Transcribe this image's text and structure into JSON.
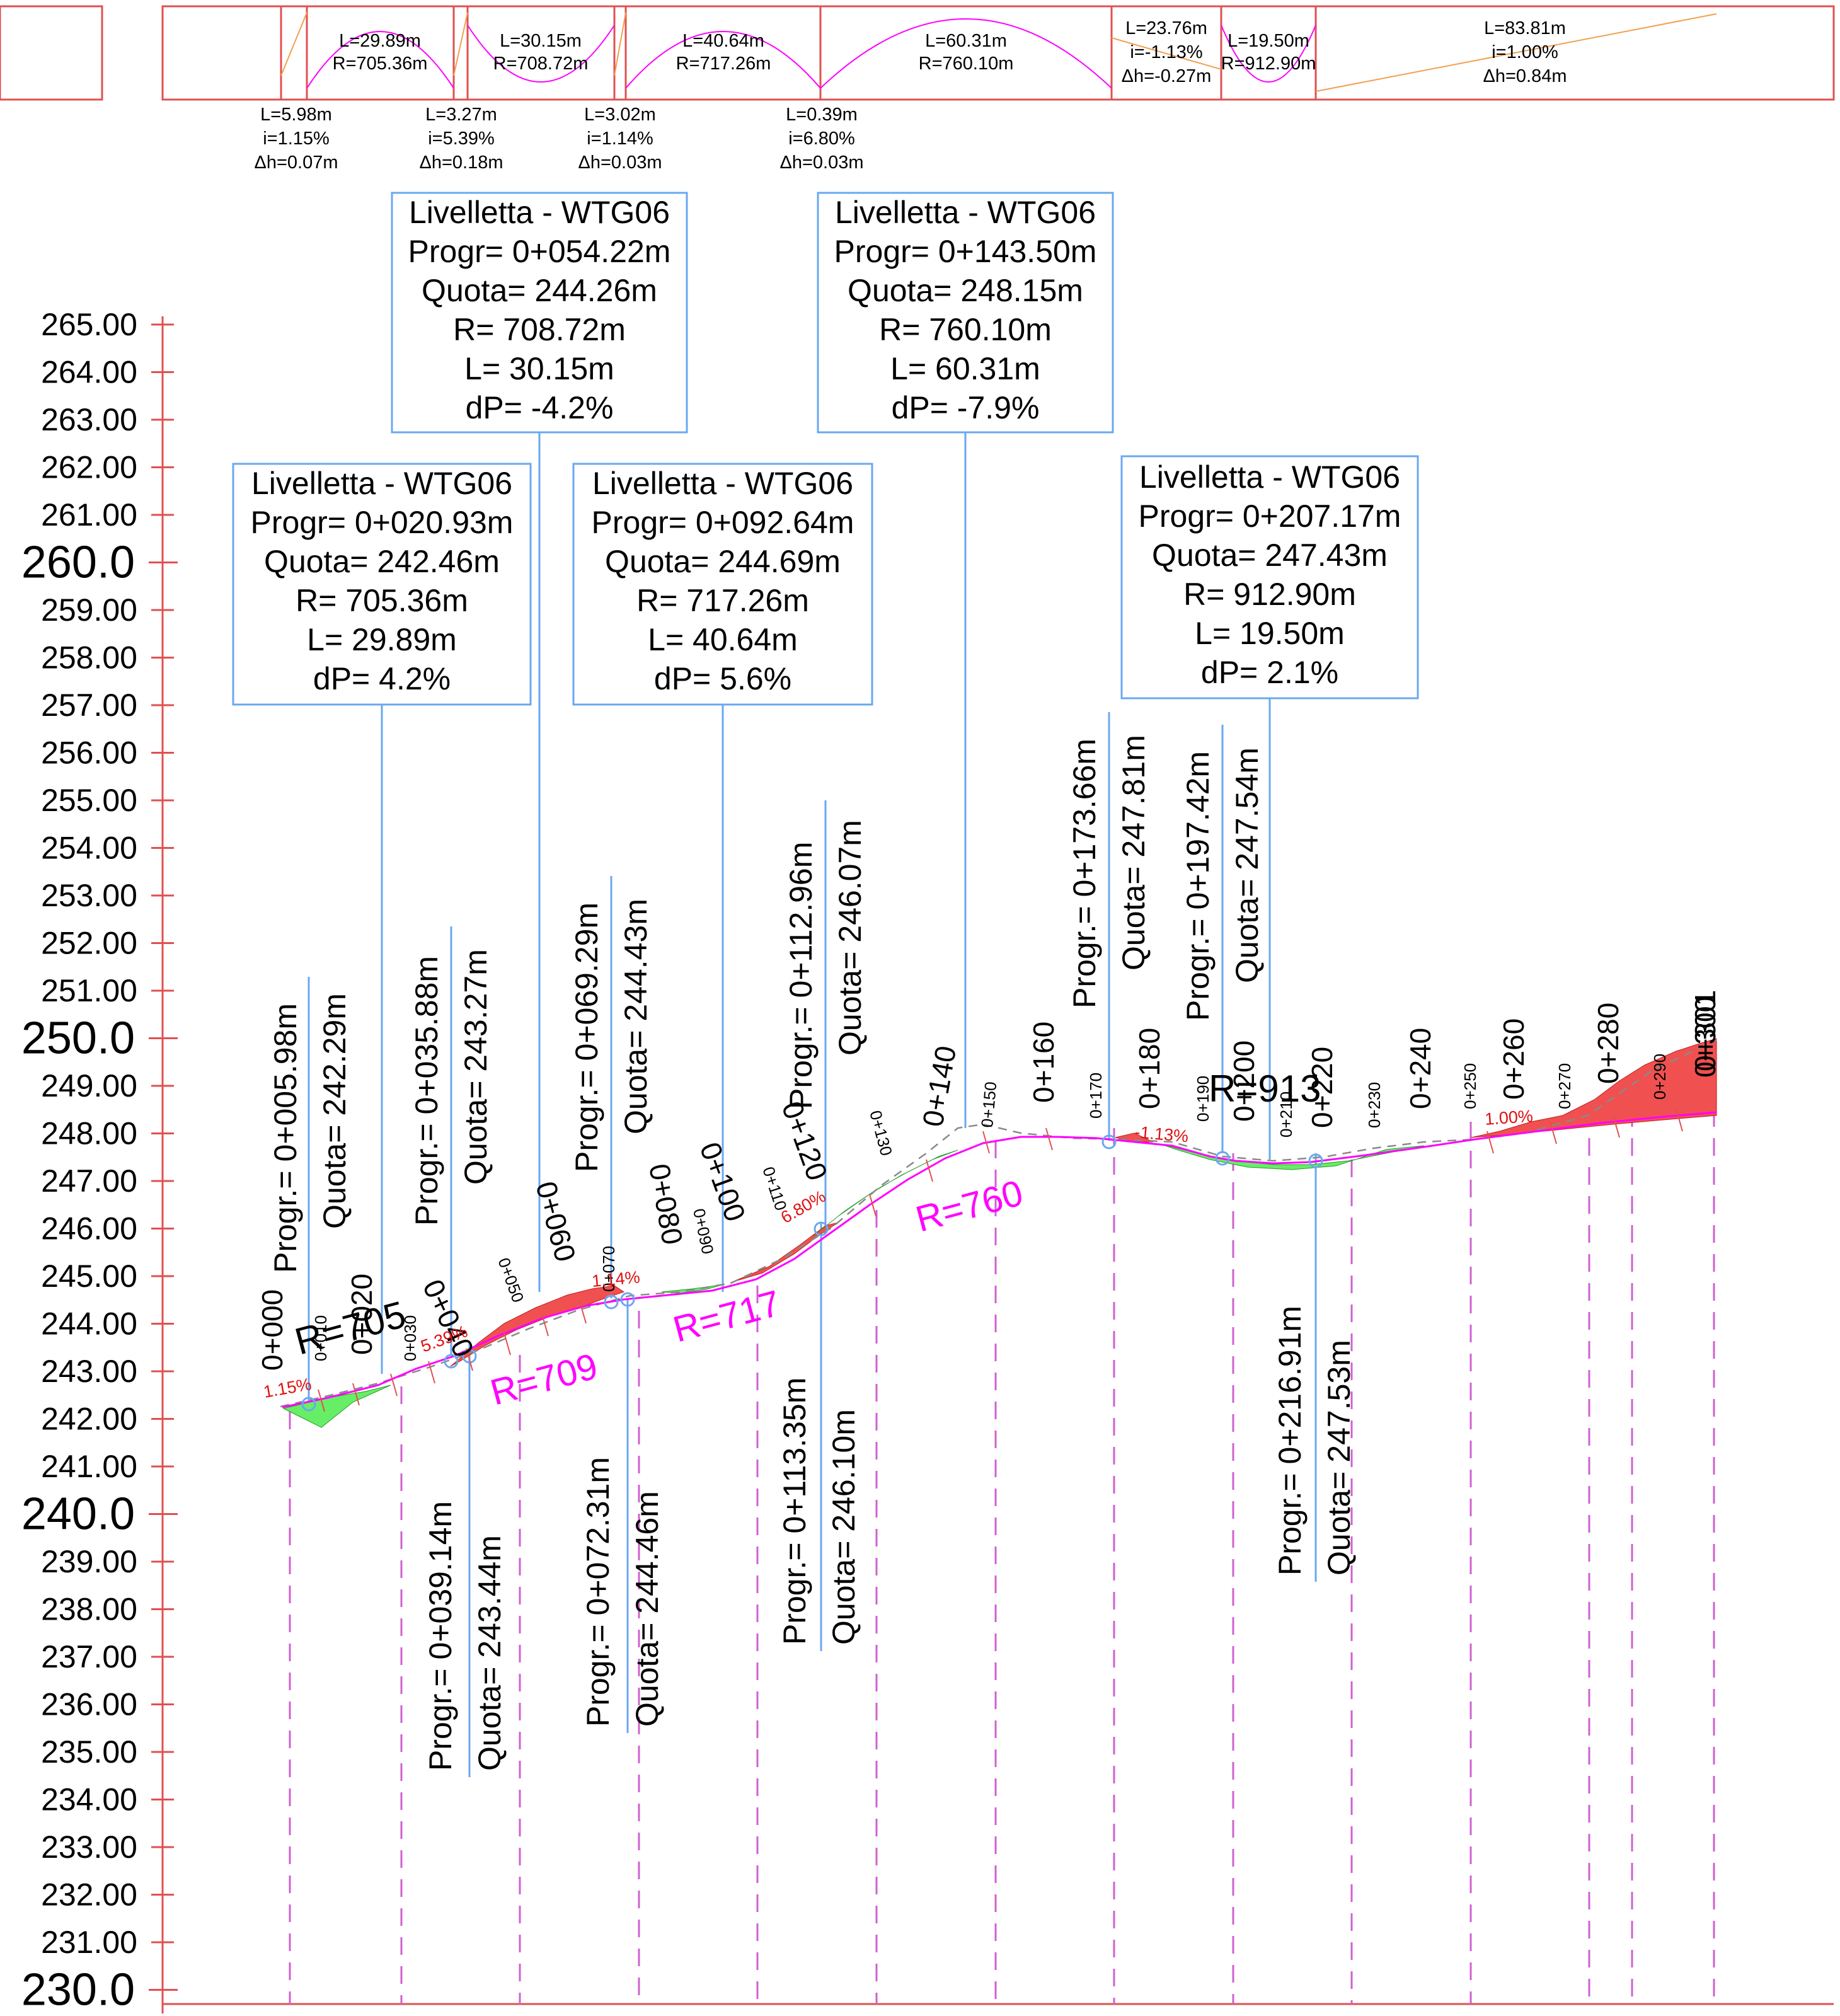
{
  "colors": {
    "band_border": "#e05050",
    "axis_red": "#e05050",
    "callout_line": "#6aa8f0",
    "vertical_curve": "#ff00ff",
    "grade_line": "#f0a050",
    "fill_cut": "#f05050",
    "fill_fill": "#66ee66",
    "terrain_dashed": "#8a8a8a",
    "station_dash": "#d060d0"
  },
  "band": {
    "curves": [
      {
        "l": "L=29.89m",
        "r": "R=705.36m"
      },
      {
        "l": "L=30.15m",
        "r": "R=708.72m"
      },
      {
        "l": "L=40.64m",
        "r": "R=717.26m"
      },
      {
        "l": "L=60.31m",
        "r": "R=760.10m"
      },
      {
        "l": "L=19.50m",
        "r": "R=912.90m"
      }
    ],
    "grades_in": [
      {
        "l": "L=23.76m",
        "i": "i=-1.13%",
        "dh": "Δh=-0.27m"
      },
      {
        "l": "L=83.81m",
        "i": "i=1.00%",
        "dh": "Δh=0.84m"
      }
    ],
    "grades_below": [
      {
        "l": "L=5.98m",
        "i": "i=1.15%",
        "dh": "Δh=0.07m"
      },
      {
        "l": "L=3.27m",
        "i": "i=5.39%",
        "dh": "Δh=0.18m"
      },
      {
        "l": "L=3.02m",
        "i": "i=1.14%",
        "dh": "Δh=0.03m"
      },
      {
        "l": "L=0.39m",
        "i": "i=6.80%",
        "dh": "Δh=0.03m"
      }
    ]
  },
  "callouts": [
    {
      "title": "Livelletta - WTG06",
      "progr": "Progr= 0+054.22m",
      "quota": "Quota= 244.26m",
      "r": "R= 708.72m",
      "l": "L= 30.15m",
      "dp": "dP= -4.2%"
    },
    {
      "title": "Livelletta - WTG06",
      "progr": "Progr= 0+143.50m",
      "quota": "Quota= 248.15m",
      "r": "R= 760.10m",
      "l": "L= 60.31m",
      "dp": "dP= -7.9%"
    },
    {
      "title": "Livelletta - WTG06",
      "progr": "Progr= 0+020.93m",
      "quota": "Quota= 242.46m",
      "r": "R= 705.36m",
      "l": "L= 29.89m",
      "dp": "dP= 4.2%"
    },
    {
      "title": "Livelletta - WTG06",
      "progr": "Progr= 0+092.64m",
      "quota": "Quota= 244.69m",
      "r": "R= 717.26m",
      "l": "L= 40.64m",
      "dp": "dP= 5.6%"
    },
    {
      "title": "Livelletta - WTG06",
      "progr": "Progr= 0+207.17m",
      "quota": "Quota= 247.43m",
      "r": "R= 912.90m",
      "l": "L= 19.50m",
      "dp": "dP= 2.1%"
    }
  ],
  "axis_labels": [
    "265.00",
    "264.00",
    "263.00",
    "262.00",
    "261.00",
    "260.0",
    "259.00",
    "258.00",
    "257.00",
    "256.00",
    "255.00",
    "254.00",
    "253.00",
    "252.00",
    "251.00",
    "250.0",
    "249.00",
    "248.00",
    "247.00",
    "246.00",
    "245.00",
    "244.00",
    "243.00",
    "242.00",
    "241.00",
    "240.0",
    "239.00",
    "238.00",
    "237.00",
    "236.00",
    "235.00",
    "234.00",
    "233.00",
    "232.00",
    "231.00",
    "230.0"
  ],
  "vertical_labels_above": [
    {
      "progr": "Progr.= 0+005.98m",
      "quota": "Quota= 242.29m"
    },
    {
      "progr": "Progr.= 0+035.88m",
      "quota": "Quota= 243.27m"
    },
    {
      "progr": "Progr.= 0+069.29m",
      "quota": "Quota= 244.43m"
    },
    {
      "progr": "Progr.= 0+112.96m",
      "quota": "Quota= 246.07m"
    },
    {
      "progr": "Progr.= 0+173.66m",
      "quota": "Quota= 247.81m"
    },
    {
      "progr": "Progr.= 0+197.42m",
      "quota": "Quota= 247.54m"
    }
  ],
  "vertical_labels_below": [
    {
      "progr": "Progr.= 0+039.14m",
      "quota": "Quota= 243.44m"
    },
    {
      "progr": "Progr.= 0+072.31m",
      "quota": "Quota= 244.46m"
    },
    {
      "progr": "Progr.= 0+113.35m",
      "quota": "Quota= 246.10m"
    },
    {
      "progr": "Progr.= 0+216.91m",
      "quota": "Quota= 247.53m"
    }
  ],
  "stations": [
    "0+000",
    "0+010",
    "0+020",
    "0+030",
    "0+040",
    "0+050",
    "0+060",
    "0+070",
    "0+080",
    "0+090",
    "0+100",
    "0+110",
    "0+120",
    "0+130",
    "0+140",
    "0+150",
    "0+160",
    "0+170",
    "0+180",
    "0+190",
    "0+200",
    "0+210",
    "0+220",
    "0+230",
    "0+240",
    "0+250",
    "0+260",
    "0+270",
    "0+280",
    "0+290",
    "0+300",
    "0+301"
  ],
  "radius_labels": [
    "R=705",
    "R=709",
    "R=717",
    "R=760",
    "R=913"
  ],
  "grade_labels": [
    "1.15%",
    "5.39%",
    "1.14%",
    "6.80%",
    "-1.13%",
    "1.00%"
  ]
}
